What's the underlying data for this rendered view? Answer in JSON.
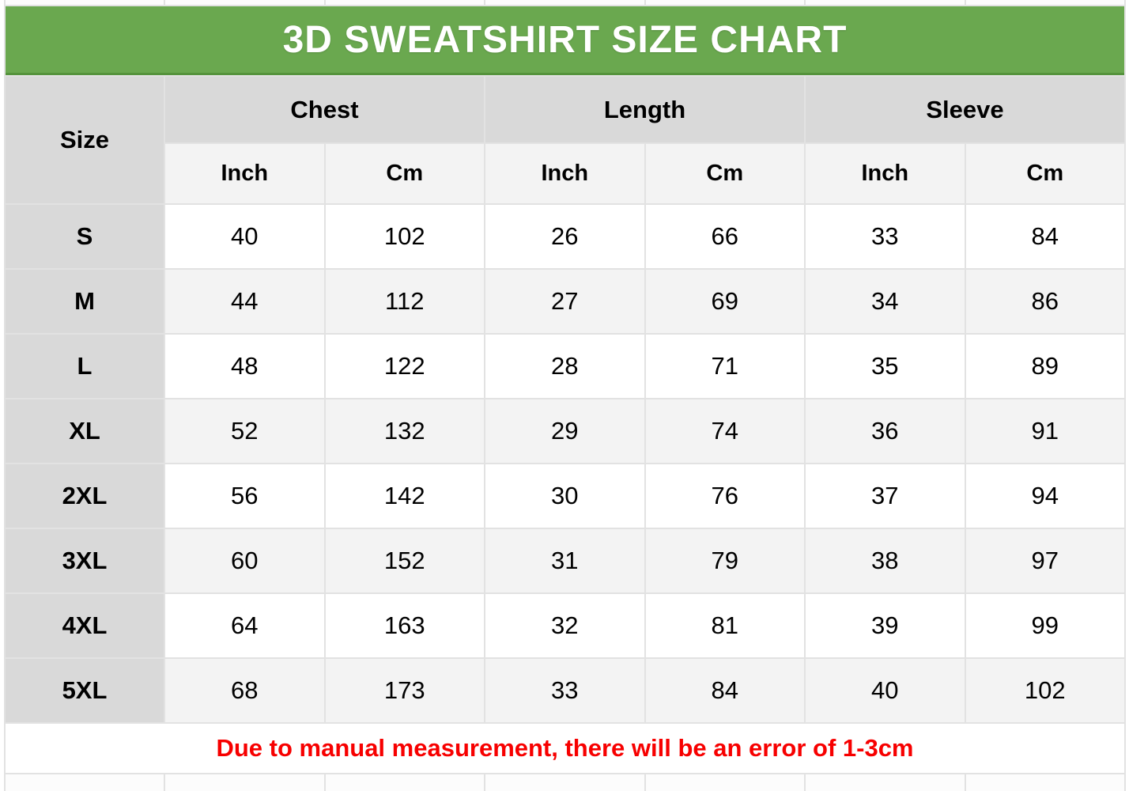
{
  "chart_data": {
    "type": "table",
    "title": "3D SWEATSHIRT SIZE CHART",
    "size_header": "Size",
    "column_groups": [
      "Chest",
      "Length",
      "Sleeve"
    ],
    "unit_headers": [
      "Inch",
      "Cm",
      "Inch",
      "Cm",
      "Inch",
      "Cm"
    ],
    "columns": [
      "Size",
      "Chest Inch",
      "Chest Cm",
      "Length Inch",
      "Length Cm",
      "Sleeve Inch",
      "Sleeve Cm"
    ],
    "rows": [
      {
        "size": "S",
        "values": [
          "40",
          "102",
          "26",
          "66",
          "33",
          "84"
        ]
      },
      {
        "size": "M",
        "values": [
          "44",
          "112",
          "27",
          "69",
          "34",
          "86"
        ]
      },
      {
        "size": "L",
        "values": [
          "48",
          "122",
          "28",
          "71",
          "35",
          "89"
        ]
      },
      {
        "size": "XL",
        "values": [
          "52",
          "132",
          "29",
          "74",
          "36",
          "91"
        ]
      },
      {
        "size": "2XL",
        "values": [
          "56",
          "142",
          "30",
          "76",
          "37",
          "94"
        ]
      },
      {
        "size": "3XL",
        "values": [
          "60",
          "152",
          "31",
          "79",
          "38",
          "97"
        ]
      },
      {
        "size": "4XL",
        "values": [
          "64",
          "163",
          "32",
          "81",
          "39",
          "99"
        ]
      },
      {
        "size": "5XL",
        "values": [
          "68",
          "173",
          "33",
          "84",
          "40",
          "102"
        ]
      }
    ],
    "footnote": "Due to manual measurement, there will be an error of 1-3cm"
  },
  "colors": {
    "banner_green": "#6aa84f",
    "banner_green_edge": "#55933c",
    "header_gray": "#d9d9d9",
    "subheader_gray": "#f3f3f3",
    "row_alt_gray": "#f3f3f3",
    "row_white": "#ffffff",
    "grid_line": "#e2e2e2",
    "note_red": "#f70000",
    "title_text": "#ffffff",
    "body_text": "#000000"
  }
}
